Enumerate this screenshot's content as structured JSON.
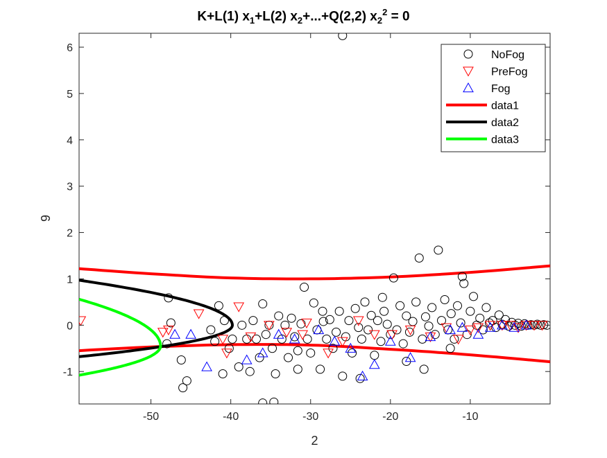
{
  "chart_data": {
    "type": "scatter",
    "title": {
      "parts": [
        {
          "t": "K+L(1) x",
          "s": "n"
        },
        {
          "t": "1",
          "s": "sub"
        },
        {
          "t": "+L(2) x",
          "s": "n"
        },
        {
          "t": "2",
          "s": "sub"
        },
        {
          "t": "+...+Q(2,2) x",
          "s": "n"
        },
        {
          "t": "2",
          "s": "sub"
        },
        {
          "t": "2",
          "s": "sup"
        },
        {
          "t": " = 0",
          "s": "n"
        }
      ]
    },
    "xlabel": "2",
    "ylabel": "9",
    "xlim": [
      -59,
      0
    ],
    "ylim": [
      -1.7,
      6.3
    ],
    "xticks": [
      -50,
      -40,
      -30,
      -20,
      -10
    ],
    "yticks": [
      -1,
      0,
      1,
      2,
      3,
      4,
      5,
      6
    ],
    "grid": false,
    "legend_position": "top-right",
    "series": [
      {
        "name": "NoFog",
        "marker": "circle",
        "color": "#000000",
        "points": [
          [
            -47.8,
            0.59
          ],
          [
            -46.0,
            -1.35
          ],
          [
            -45.5,
            -1.2
          ],
          [
            -47.5,
            0.05
          ],
          [
            -48.0,
            -0.4
          ],
          [
            -46.2,
            -0.75
          ],
          [
            -42.5,
            -0.1
          ],
          [
            -42.0,
            -0.35
          ],
          [
            -41.5,
            0.42
          ],
          [
            -40.8,
            0.1
          ],
          [
            -40.2,
            -0.5
          ],
          [
            -39.8,
            -0.3
          ],
          [
            -39.0,
            -0.9
          ],
          [
            -38.6,
            0.0
          ],
          [
            -38.0,
            -0.3
          ],
          [
            -37.6,
            -1.0
          ],
          [
            -37.2,
            0.1
          ],
          [
            -36.8,
            -0.3
          ],
          [
            -36.4,
            -0.7
          ],
          [
            -36.0,
            0.46
          ],
          [
            -35.6,
            -0.2
          ],
          [
            -35.2,
            0.0
          ],
          [
            -34.8,
            -0.5
          ],
          [
            -34.4,
            -1.05
          ],
          [
            -34.0,
            0.2
          ],
          [
            -33.6,
            -0.3
          ],
          [
            -33.2,
            0.0
          ],
          [
            -32.8,
            -0.7
          ],
          [
            -32.4,
            0.15
          ],
          [
            -32.0,
            -0.25
          ],
          [
            -31.6,
            -0.55
          ],
          [
            -31.2,
            0.03
          ],
          [
            -30.8,
            0.82
          ],
          [
            -30.4,
            -0.3
          ],
          [
            -30.0,
            -0.6
          ],
          [
            -29.6,
            0.48
          ],
          [
            -29.2,
            -0.1
          ],
          [
            -28.8,
            -0.95
          ],
          [
            -28.4,
            0.08
          ],
          [
            -28.0,
            -0.3
          ],
          [
            -27.6,
            0.12
          ],
          [
            -27.2,
            -0.5
          ],
          [
            -26.8,
            -0.15
          ],
          [
            -26.4,
            0.3
          ],
          [
            -26.0,
            6.25
          ],
          [
            -25.6,
            -0.25
          ],
          [
            -25.2,
            0.1
          ],
          [
            -24.8,
            -0.6
          ],
          [
            -24.4,
            0.36
          ],
          [
            -24.0,
            -0.05
          ],
          [
            -23.6,
            -0.3
          ],
          [
            -23.2,
            0.5
          ],
          [
            -22.8,
            -0.1
          ],
          [
            -22.4,
            0.21
          ],
          [
            -22.0,
            -0.65
          ],
          [
            -21.6,
            0.1
          ],
          [
            -21.2,
            -0.35
          ],
          [
            -20.8,
            0.3
          ],
          [
            -20.4,
            0.02
          ],
          [
            -20.0,
            -0.2
          ],
          [
            -19.6,
            1.02
          ],
          [
            -19.2,
            -0.1
          ],
          [
            -18.8,
            0.42
          ],
          [
            -18.4,
            -0.4
          ],
          [
            -18.0,
            0.2
          ],
          [
            -17.6,
            -0.15
          ],
          [
            -17.2,
            0.08
          ],
          [
            -16.8,
            0.5
          ],
          [
            -16.4,
            1.45
          ],
          [
            -16.0,
            -0.3
          ],
          [
            -15.6,
            0.18
          ],
          [
            -15.2,
            -0.02
          ],
          [
            -14.8,
            0.38
          ],
          [
            -14.4,
            -0.2
          ],
          [
            -14.0,
            1.62
          ],
          [
            -13.6,
            0.1
          ],
          [
            -13.2,
            0.55
          ],
          [
            -12.8,
            -0.1
          ],
          [
            -12.4,
            0.25
          ],
          [
            -12.0,
            -0.3
          ],
          [
            -11.6,
            0.42
          ],
          [
            -11.2,
            0.05
          ],
          [
            -10.8,
            0.9
          ],
          [
            -10.4,
            -0.2
          ],
          [
            -10.0,
            0.3
          ],
          [
            -9.6,
            0.62
          ],
          [
            -9.2,
            0.0
          ],
          [
            -8.8,
            0.15
          ],
          [
            -8.4,
            -0.1
          ],
          [
            -8.0,
            0.38
          ],
          [
            -7.6,
            0.05
          ],
          [
            -7.2,
            0.1
          ],
          [
            -6.8,
            -0.05
          ],
          [
            -6.4,
            0.22
          ],
          [
            -6.0,
            0.02
          ],
          [
            -5.6,
            0.12
          ],
          [
            -5.2,
            -0.02
          ],
          [
            -4.8,
            0.06
          ],
          [
            -4.4,
            0.0
          ],
          [
            -4.0,
            0.04
          ],
          [
            -3.6,
            -0.02
          ],
          [
            -3.2,
            0.03
          ],
          [
            -2.8,
            0.0
          ],
          [
            -2.4,
            0.01
          ],
          [
            -2.0,
            0.0
          ],
          [
            -1.6,
            0.02
          ],
          [
            -1.2,
            0.0
          ],
          [
            -0.8,
            0.01
          ],
          [
            -0.4,
            0.0
          ],
          [
            -36.0,
            -1.68
          ],
          [
            -34.6,
            -1.66
          ],
          [
            -41.0,
            -1.05
          ],
          [
            -31.6,
            -0.95
          ],
          [
            -26.0,
            -1.1
          ],
          [
            -23.8,
            -1.15
          ],
          [
            -18.0,
            -0.78
          ],
          [
            -15.8,
            -0.95
          ],
          [
            -12.5,
            -0.5
          ],
          [
            -28.5,
            0.3
          ],
          [
            -21.0,
            0.6
          ],
          [
            -11.0,
            1.05
          ]
        ]
      },
      {
        "name": "PreFog",
        "marker": "triangle-down",
        "color": "#ff0000",
        "points": [
          [
            -58.8,
            0.1
          ],
          [
            -48.5,
            -0.15
          ],
          [
            -47.8,
            -0.1
          ],
          [
            -44.0,
            0.25
          ],
          [
            -41.0,
            -0.3
          ],
          [
            -40.5,
            -0.6
          ],
          [
            -39.0,
            0.4
          ],
          [
            -37.5,
            -0.25
          ],
          [
            -35.2,
            0.0
          ],
          [
            -33.0,
            -0.15
          ],
          [
            -31.0,
            -0.2
          ],
          [
            -30.5,
            0.05
          ],
          [
            -27.8,
            -0.6
          ],
          [
            -26.0,
            -0.35
          ],
          [
            -24.0,
            0.1
          ],
          [
            -22.0,
            -0.2
          ],
          [
            -19.8,
            -0.2
          ],
          [
            -17.5,
            -0.1
          ],
          [
            -15.0,
            -0.25
          ],
          [
            -13.0,
            -0.05
          ],
          [
            -11.5,
            -0.3
          ],
          [
            -10.0,
            -0.1
          ],
          [
            -9.0,
            -0.05
          ],
          [
            -7.5,
            0.0
          ],
          [
            -6.0,
            0.0
          ],
          [
            -5.0,
            0.0
          ],
          [
            -4.0,
            -0.05
          ],
          [
            -3.0,
            0.0
          ],
          [
            -2.0,
            0.0
          ],
          [
            -1.0,
            0.0
          ]
        ]
      },
      {
        "name": "Fog",
        "marker": "triangle-up",
        "color": "#0000ff",
        "points": [
          [
            -47.0,
            -0.2
          ],
          [
            -45.0,
            -0.2
          ],
          [
            -43.0,
            -0.9
          ],
          [
            -38.0,
            -0.75
          ],
          [
            -36.0,
            -0.6
          ],
          [
            -34.0,
            -0.2
          ],
          [
            -32.0,
            -0.3
          ],
          [
            -29.0,
            -0.1
          ],
          [
            -27.0,
            -0.35
          ],
          [
            -25.0,
            -0.5
          ],
          [
            -23.5,
            -1.1
          ],
          [
            -22.0,
            -0.85
          ],
          [
            -20.0,
            -0.35
          ],
          [
            -17.5,
            -0.7
          ],
          [
            -15.0,
            -0.25
          ],
          [
            -12.5,
            -0.1
          ],
          [
            -11.0,
            -0.05
          ],
          [
            -9.0,
            -0.2
          ],
          [
            -7.5,
            -0.05
          ],
          [
            -6.0,
            0.0
          ],
          [
            -4.5,
            -0.05
          ],
          [
            -3.0,
            0.0
          ]
        ]
      }
    ],
    "curves": [
      {
        "name": "data1",
        "color": "#ff0000",
        "upper": [
          [
            -59,
            1.22
          ],
          [
            -50,
            1.11
          ],
          [
            -40,
            1.02
          ],
          [
            -30,
            1.0
          ],
          [
            -20,
            1.04
          ],
          [
            -10,
            1.14
          ],
          [
            0,
            1.28
          ]
        ],
        "lower": [
          [
            -59,
            -0.55
          ],
          [
            -50,
            -0.47
          ],
          [
            -40,
            -0.42
          ],
          [
            -30,
            -0.43
          ],
          [
            -20,
            -0.52
          ],
          [
            -10,
            -0.64
          ],
          [
            0,
            -0.79
          ]
        ]
      },
      {
        "name": "data2",
        "color": "#000000",
        "vertex": [
          -39.8,
          0.0
        ],
        "tip_top": [
          -59,
          0.97
        ],
        "tip_bottom": [
          -59,
          -0.68
        ]
      },
      {
        "name": "data3",
        "color": "#00ff00",
        "vertex": [
          -48.8,
          -0.45
        ],
        "tip_top": [
          -59,
          0.56
        ],
        "tip_bottom": [
          -59,
          -1.08
        ]
      }
    ]
  }
}
